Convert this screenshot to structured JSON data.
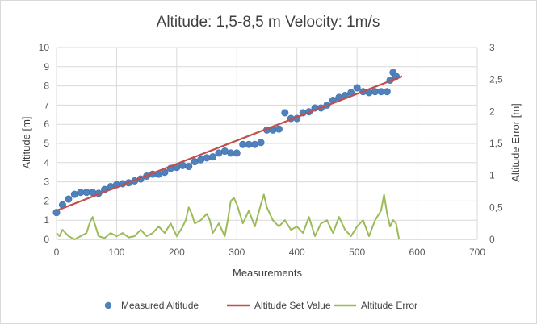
{
  "chart_data": {
    "type": "line",
    "title": "Altitude: 1,5-8,5 m Velocity: 1m/s",
    "xlabel": "Measurements",
    "ylabel": "Altitude [m]",
    "y2label": "Altitude Error [m]",
    "xlim": [
      0,
      700
    ],
    "ylim": [
      0,
      10
    ],
    "y2lim": [
      0,
      3
    ],
    "x_ticks": [
      "0",
      "100",
      "200",
      "300",
      "400",
      "500",
      "600",
      "700"
    ],
    "y_ticks": [
      "0",
      "1",
      "2",
      "3",
      "4",
      "5",
      "6",
      "7",
      "8",
      "9",
      "10"
    ],
    "y2_ticks": [
      "0",
      "0,5",
      "1",
      "1,5",
      "2",
      "2,5",
      "3"
    ],
    "grid": true,
    "legend_position": "bottom",
    "series": [
      {
        "name": "Measured Altitude",
        "kind": "scatter",
        "axis": "left",
        "color": "#4f81bd",
        "x": [
          0,
          10,
          20,
          30,
          40,
          50,
          60,
          70,
          80,
          90,
          100,
          110,
          120,
          130,
          140,
          150,
          160,
          170,
          180,
          190,
          200,
          210,
          220,
          230,
          240,
          250,
          260,
          270,
          280,
          290,
          300,
          310,
          320,
          330,
          340,
          350,
          360,
          370,
          380,
          390,
          400,
          410,
          420,
          430,
          440,
          450,
          460,
          470,
          480,
          490,
          500,
          510,
          520,
          530,
          540,
          550,
          555,
          560,
          565
        ],
        "y": [
          1.4,
          1.8,
          2.1,
          2.35,
          2.45,
          2.45,
          2.45,
          2.4,
          2.6,
          2.75,
          2.85,
          2.9,
          2.95,
          3.05,
          3.15,
          3.3,
          3.4,
          3.4,
          3.5,
          3.7,
          3.75,
          3.85,
          3.8,
          4.05,
          4.15,
          4.25,
          4.3,
          4.5,
          4.6,
          4.5,
          4.5,
          4.95,
          4.95,
          4.95,
          5.05,
          5.7,
          5.7,
          5.75,
          6.6,
          6.3,
          6.3,
          6.6,
          6.65,
          6.85,
          6.85,
          7.0,
          7.25,
          7.4,
          7.5,
          7.65,
          7.9,
          7.7,
          7.65,
          7.7,
          7.7,
          7.7,
          8.3,
          8.7,
          8.5
        ]
      },
      {
        "name": "Altitude Set Value",
        "kind": "line",
        "axis": "left",
        "color": "#c0504d",
        "x": [
          0,
          575
        ],
        "y": [
          1.5,
          8.5
        ]
      },
      {
        "name": "Altitude Error",
        "kind": "line",
        "axis": "right",
        "color": "#9bbb59",
        "x": [
          0,
          5,
          10,
          20,
          30,
          40,
          50,
          55,
          60,
          65,
          70,
          80,
          90,
          100,
          110,
          120,
          130,
          140,
          150,
          160,
          170,
          180,
          190,
          200,
          210,
          215,
          220,
          225,
          230,
          240,
          250,
          255,
          260,
          270,
          280,
          285,
          290,
          295,
          300,
          310,
          320,
          330,
          340,
          345,
          350,
          360,
          370,
          380,
          390,
          400,
          410,
          420,
          430,
          440,
          450,
          460,
          470,
          480,
          490,
          500,
          510,
          520,
          530,
          540,
          545,
          550,
          555,
          560,
          565,
          570
        ],
        "y": [
          0.1,
          0.05,
          0.15,
          0.05,
          0.0,
          0.05,
          0.1,
          0.25,
          0.35,
          0.2,
          0.05,
          0.02,
          0.1,
          0.05,
          0.1,
          0.03,
          0.05,
          0.15,
          0.05,
          0.1,
          0.2,
          0.1,
          0.25,
          0.05,
          0.2,
          0.3,
          0.5,
          0.4,
          0.25,
          0.3,
          0.4,
          0.3,
          0.1,
          0.25,
          0.05,
          0.3,
          0.6,
          0.65,
          0.55,
          0.25,
          0.45,
          0.2,
          0.55,
          0.7,
          0.5,
          0.3,
          0.2,
          0.3,
          0.15,
          0.2,
          0.1,
          0.35,
          0.05,
          0.25,
          0.3,
          0.1,
          0.35,
          0.15,
          0.05,
          0.2,
          0.3,
          0.05,
          0.3,
          0.45,
          0.7,
          0.4,
          0.2,
          0.3,
          0.25,
          0.0
        ]
      }
    ]
  }
}
